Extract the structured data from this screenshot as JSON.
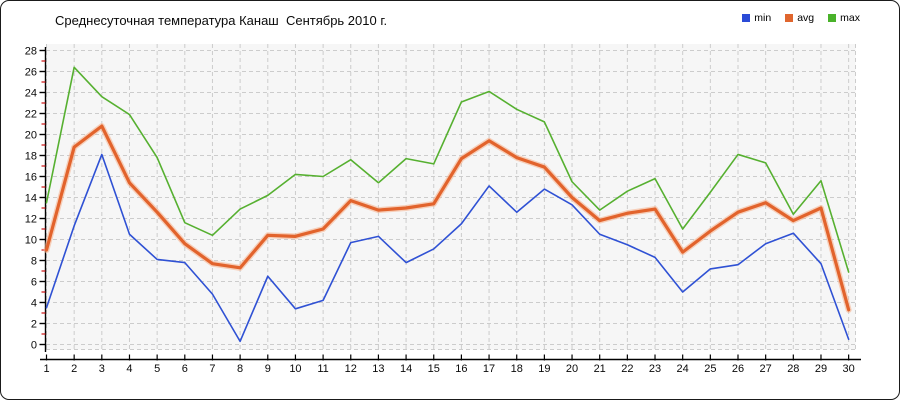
{
  "header": {
    "title": "Среднесуточная температура Канаш  Сентябрь 2010 г."
  },
  "chart_data": {
    "type": "line",
    "title": "Среднесуточная температура Канаш  Сентябрь 2010 г.",
    "xlabel": "",
    "ylabel": "",
    "x": [
      1,
      2,
      3,
      4,
      5,
      6,
      7,
      8,
      9,
      10,
      11,
      12,
      13,
      14,
      15,
      16,
      17,
      18,
      19,
      20,
      21,
      22,
      23,
      24,
      25,
      26,
      27,
      28,
      29,
      30
    ],
    "x_tick_labels": [
      "1",
      "2",
      "3",
      "4",
      "5",
      "6",
      "7",
      "8",
      "9",
      "10",
      "11",
      "12",
      "13",
      "14",
      "15",
      "16",
      "17",
      "18",
      "19",
      "20",
      "21",
      "22",
      "23",
      "24",
      "25",
      "26",
      "27",
      "28",
      "29",
      "30"
    ],
    "ylim": [
      0,
      28
    ],
    "y_tick_step": 2,
    "y_tick_labels": [
      "0",
      "2",
      "4",
      "6",
      "8",
      "10",
      "12",
      "14",
      "16",
      "18",
      "20",
      "22",
      "24",
      "26",
      "28"
    ],
    "grid": "dashed",
    "legend_position": "top-right",
    "plot_bg": "#f6f6f6",
    "grid_color": "#cccccc",
    "axis_color": "#000000",
    "minor_tick_color": "#cc1111",
    "series": [
      {
        "name": "min",
        "color": "#2f51d4",
        "legend_color": "#2b4bd7",
        "width": 1.6,
        "values": [
          3.5,
          11.3,
          18.1,
          10.5,
          8.1,
          7.8,
          4.8,
          0.3,
          6.5,
          3.4,
          4.2,
          9.7,
          10.3,
          7.8,
          9.1,
          11.5,
          15.1,
          12.6,
          14.8,
          13.3,
          10.5,
          9.5,
          8.3,
          5.0,
          7.2,
          7.6,
          9.6,
          10.6,
          7.7,
          0.5
        ]
      },
      {
        "name": "avg",
        "color": "#e2632c",
        "halo_color": "#f6b593",
        "legend_color": "#e0662e",
        "width": 3.2,
        "values": [
          9.0,
          18.8,
          20.8,
          15.4,
          12.6,
          9.6,
          7.7,
          7.3,
          10.4,
          10.3,
          11.0,
          13.7,
          12.8,
          13.0,
          13.4,
          17.7,
          19.4,
          17.8,
          16.9,
          14.0,
          11.8,
          12.5,
          12.9,
          8.8,
          10.8,
          12.6,
          13.5,
          11.8,
          13.0,
          3.3
        ]
      },
      {
        "name": "max",
        "color": "#56b030",
        "legend_color": "#49b22a",
        "width": 1.6,
        "values": [
          13.5,
          26.4,
          23.6,
          21.9,
          17.8,
          11.6,
          10.4,
          12.9,
          14.2,
          16.2,
          16.0,
          17.6,
          15.4,
          17.7,
          17.2,
          23.1,
          24.1,
          22.4,
          21.2,
          15.5,
          12.8,
          14.6,
          15.8,
          11.0,
          14.5,
          18.1,
          17.3,
          12.4,
          15.6,
          6.9
        ]
      }
    ]
  }
}
